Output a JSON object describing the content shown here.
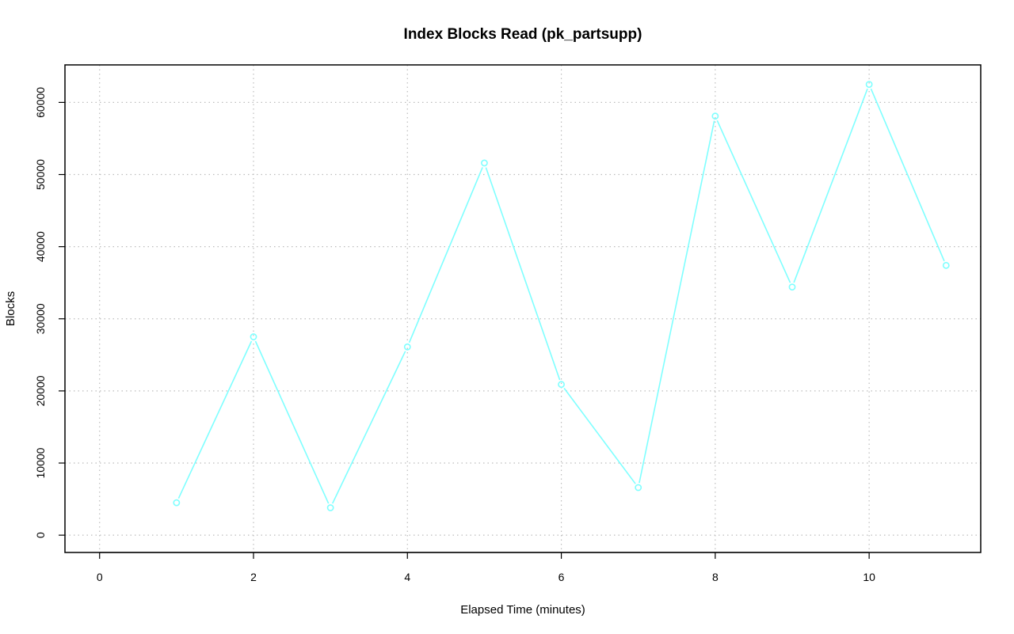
{
  "chart_data": {
    "type": "line",
    "title": "Index Blocks Read (pk_partsupp)",
    "xlabel": "Elapsed Time (minutes)",
    "ylabel": "Blocks",
    "xlim": [
      -0.45,
      11.45
    ],
    "ylim": [
      -2400,
      65200
    ],
    "x_ticks": [
      0,
      2,
      4,
      6,
      8,
      10
    ],
    "y_ticks": [
      0,
      10000,
      20000,
      30000,
      40000,
      50000,
      60000
    ],
    "grid": true,
    "legend": "none",
    "series": [
      {
        "color": "#7fffff",
        "marker": "open-circle",
        "x": [
          1,
          2,
          3,
          4,
          5,
          6,
          7,
          8,
          9,
          10,
          11
        ],
        "y": [
          4500,
          27500,
          3800,
          26100,
          51600,
          20900,
          6600,
          58100,
          34400,
          62500,
          37400
        ]
      }
    ]
  }
}
